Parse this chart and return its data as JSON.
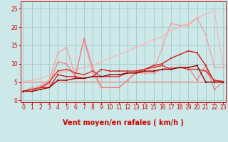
{
  "bg_color": "#cce8e8",
  "grid_color": "#aacccc",
  "xlabel": "Vent moyen/en rafales ( km/h )",
  "xlim": [
    -0.3,
    23.3
  ],
  "ylim": [
    -0.5,
    27
  ],
  "x_ticks": [
    0,
    1,
    2,
    3,
    4,
    5,
    6,
    7,
    8,
    9,
    10,
    11,
    12,
    13,
    14,
    15,
    16,
    17,
    18,
    19,
    20,
    21,
    22,
    23
  ],
  "y_ticks": [
    0,
    5,
    10,
    15,
    20,
    25
  ],
  "tick_color": "#cc0000",
  "xlabel_fontsize": 7,
  "tick_fontsize": 5.5,
  "arrows": [
    "↙",
    "↗",
    "↑",
    "←",
    "↖",
    "↑",
    "↙",
    "↗",
    "↑",
    "↗",
    "↖",
    "↗",
    "→",
    "←",
    "↓",
    "↙",
    "↓",
    "↓",
    "↓",
    "↑",
    "↓",
    "↓",
    "↓",
    "↘"
  ],
  "lines": [
    {
      "x": [
        0,
        1,
        2,
        3,
        4,
        5,
        6,
        7,
        8,
        9,
        10,
        11,
        12,
        13,
        14,
        15,
        16,
        17,
        18,
        19,
        20,
        21,
        22,
        23
      ],
      "y": [
        5.2,
        5.2,
        5.2,
        5.2,
        5.2,
        5.2,
        5.2,
        5.2,
        5.2,
        5.2,
        5.2,
        5.2,
        5.2,
        5.2,
        5.2,
        5.2,
        5.2,
        5.2,
        5.2,
        5.2,
        5.2,
        5.2,
        5.2,
        5.2
      ],
      "color": "#f5a0a0",
      "lw": 0.9,
      "marker": "D",
      "ms": 1.5
    },
    {
      "x": [
        0,
        1,
        2,
        3,
        4,
        5,
        6,
        7,
        8,
        9,
        10,
        11,
        12,
        13,
        14,
        15,
        16,
        17,
        18,
        19,
        20,
        21,
        22,
        23
      ],
      "y": [
        5.2,
        5.5,
        6.0,
        7.0,
        7.5,
        8.0,
        8.5,
        9.0,
        9.5,
        10.5,
        11.5,
        12.5,
        13.5,
        14.5,
        15.5,
        16.5,
        17.5,
        19.0,
        20.0,
        21.0,
        22.5,
        23.5,
        24.5,
        9.0
      ],
      "color": "#f5b8b8",
      "lw": 0.9,
      "marker": "D",
      "ms": 1.5
    },
    {
      "x": [
        0,
        1,
        2,
        3,
        4,
        5,
        6,
        7,
        8,
        9,
        10,
        11,
        12,
        13,
        14,
        15,
        16,
        17,
        18,
        19,
        20,
        21,
        22,
        23
      ],
      "y": [
        2.5,
        3.5,
        4.0,
        5.5,
        13.0,
        14.5,
        6.5,
        16.5,
        7.5,
        3.5,
        3.5,
        3.5,
        5.5,
        8.0,
        8.0,
        8.0,
        14.5,
        21.0,
        20.5,
        20.5,
        22.5,
        18.0,
        9.0,
        9.0
      ],
      "color": "#f0a0a0",
      "lw": 0.9,
      "marker": "D",
      "ms": 1.5
    },
    {
      "x": [
        0,
        1,
        2,
        3,
        4,
        5,
        6,
        7,
        8,
        9,
        10,
        11,
        12,
        13,
        14,
        15,
        16,
        17,
        18,
        19,
        20,
        21,
        22,
        23
      ],
      "y": [
        2.5,
        3.0,
        3.5,
        4.5,
        10.5,
        10.0,
        6.5,
        17.0,
        9.0,
        3.5,
        3.5,
        3.5,
        5.5,
        7.5,
        7.5,
        7.5,
        8.5,
        9.0,
        9.0,
        9.0,
        5.5,
        9.5,
        3.0,
        5.0
      ],
      "color": "#f08080",
      "lw": 0.9,
      "marker": "D",
      "ms": 1.5
    },
    {
      "x": [
        0,
        1,
        2,
        3,
        4,
        5,
        6,
        7,
        8,
        9,
        10,
        11,
        12,
        13,
        14,
        15,
        16,
        17,
        18,
        19,
        20,
        21,
        22,
        23
      ],
      "y": [
        2.5,
        3.0,
        3.5,
        3.5,
        7.0,
        6.5,
        6.5,
        6.0,
        6.5,
        8.5,
        8.0,
        8.0,
        8.0,
        8.0,
        8.5,
        9.5,
        10.0,
        11.5,
        12.5,
        13.5,
        13.0,
        9.5,
        5.0,
        5.2
      ],
      "color": "#cc2020",
      "lw": 1.0,
      "marker": "s",
      "ms": 1.8
    },
    {
      "x": [
        0,
        1,
        2,
        3,
        4,
        5,
        6,
        7,
        8,
        9,
        10,
        11,
        12,
        13,
        14,
        15,
        16,
        17,
        18,
        19,
        20,
        21,
        22,
        23
      ],
      "y": [
        2.5,
        3.0,
        3.5,
        5.0,
        8.0,
        8.5,
        7.5,
        7.0,
        8.0,
        6.5,
        6.5,
        6.5,
        7.5,
        7.5,
        8.5,
        9.0,
        9.5,
        8.5,
        9.0,
        8.5,
        8.5,
        8.0,
        5.5,
        5.2
      ],
      "color": "#dd3030",
      "lw": 1.0,
      "marker": "s",
      "ms": 1.8
    },
    {
      "x": [
        0,
        1,
        2,
        3,
        4,
        5,
        6,
        7,
        8,
        9,
        10,
        11,
        12,
        13,
        14,
        15,
        16,
        17,
        18,
        19,
        20,
        21,
        22,
        23
      ],
      "y": [
        2.5,
        2.5,
        3.0,
        3.5,
        5.5,
        5.5,
        6.0,
        6.0,
        6.5,
        6.5,
        7.0,
        7.0,
        7.5,
        7.5,
        8.0,
        8.0,
        8.5,
        8.5,
        9.0,
        9.0,
        9.5,
        5.0,
        5.0,
        5.0
      ],
      "color": "#990000",
      "lw": 1.0,
      "marker": "s",
      "ms": 1.8
    }
  ]
}
